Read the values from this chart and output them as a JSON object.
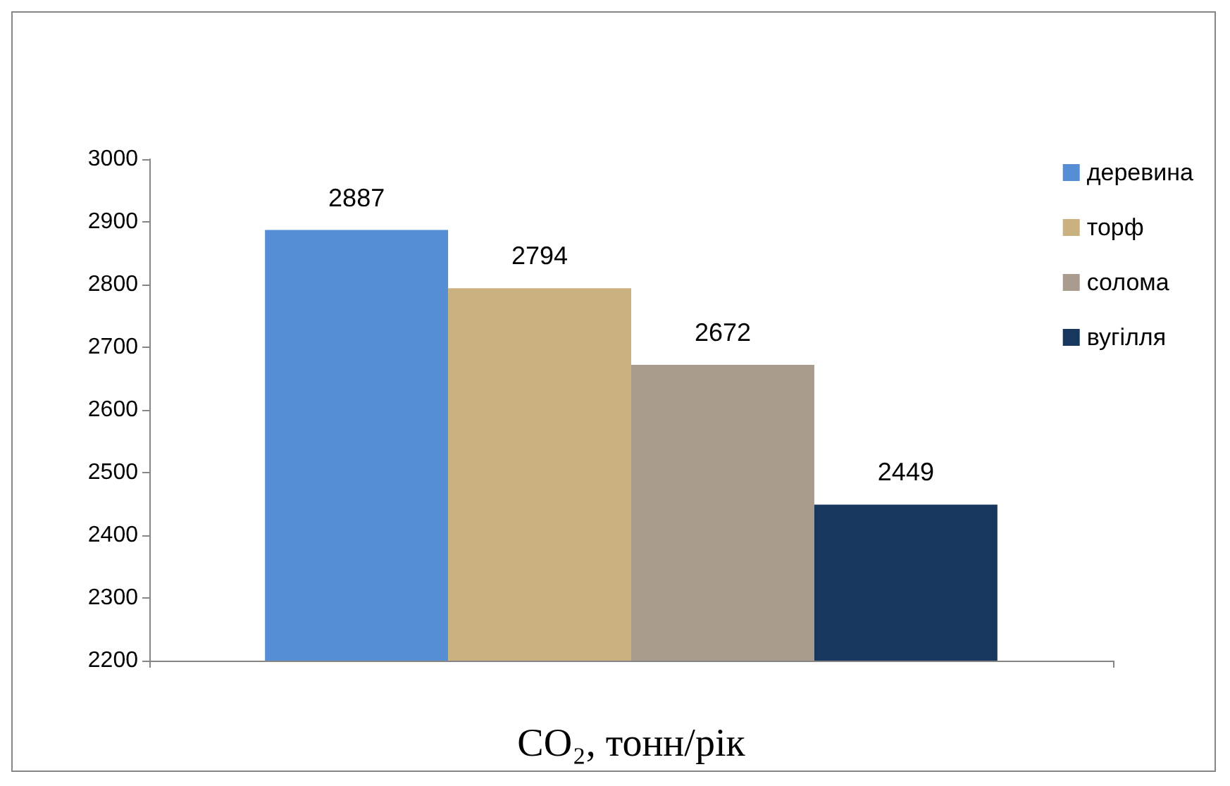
{
  "chart_data": {
    "type": "bar",
    "xlabel": "CO₂, тонн/рік",
    "categories": [
      null
    ],
    "series": [
      {
        "name": "деревина",
        "color": "#558ed5",
        "values": [
          2887
        ]
      },
      {
        "name": "торф",
        "color": "#c9b27f",
        "values": [
          2794
        ]
      },
      {
        "name": "солома",
        "color": "#a99c8e",
        "values": [
          2672
        ]
      },
      {
        "name": "вугілля",
        "color": "#17375e",
        "values": [
          2449
        ]
      }
    ],
    "ylim": [
      2200,
      3000
    ],
    "yticks": [
      2200,
      2300,
      2400,
      2500,
      2600,
      2700,
      2800,
      2900,
      3000
    ],
    "data_labels": true,
    "grid": false,
    "legend": "top right"
  }
}
